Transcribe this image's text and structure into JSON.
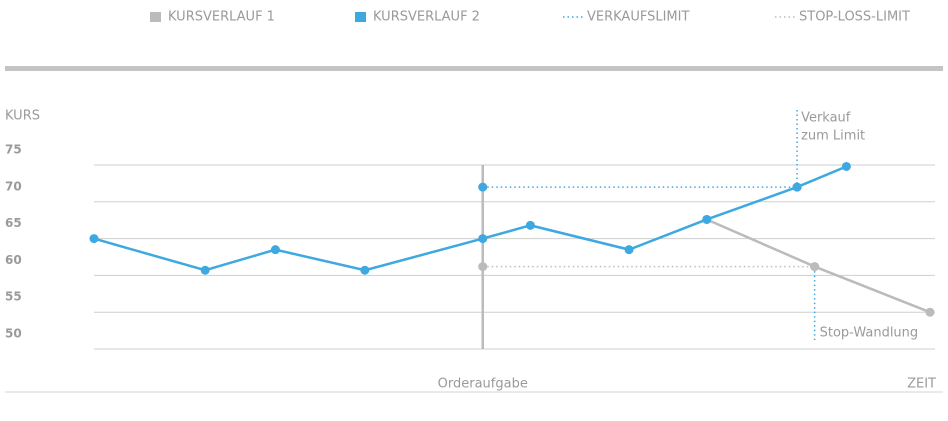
{
  "chart_data": {
    "type": "line",
    "y_label": "KURS",
    "x_label": "ZEIT",
    "xlim": [
      0,
      100
    ],
    "ylim": [
      50,
      75
    ],
    "yticks": [
      50,
      55,
      60,
      65,
      70,
      75
    ],
    "grid": true,
    "legend": "top",
    "series": [
      {
        "name": "KURSVERLAUF 1",
        "color": "#bbbbbb",
        "style": "solid",
        "x": [
          73.3,
          86.2,
          100
        ],
        "values": [
          67.6,
          61.2,
          55
        ]
      },
      {
        "name": "KURSVERLAUF 2",
        "color": "#3ea8e0",
        "style": "solid",
        "x": [
          0,
          13.3,
          21.7,
          32.4,
          46.5,
          52.2,
          64,
          73.3,
          84.1,
          90
        ],
        "values": [
          65,
          60.7,
          63.5,
          60.7,
          65,
          66.8,
          63.5,
          67.6,
          72,
          74.8
        ]
      },
      {
        "name": "VERKAUFSLIMIT",
        "color": "#3ea8e0",
        "style": "dotted",
        "x": [
          46.5,
          84.1
        ],
        "values": [
          72,
          72
        ]
      },
      {
        "name": "STOP-LOSS-LIMIT",
        "color": "#bbbbbb",
        "style": "dotted",
        "x": [
          46.5,
          86.2
        ],
        "values": [
          61.2,
          61.2
        ]
      }
    ],
    "annotations": {
      "order": "Orderaufgabe",
      "sell": [
        "Verkauf",
        "zum Limit"
      ],
      "stop": "Stop-Wandlung"
    }
  }
}
